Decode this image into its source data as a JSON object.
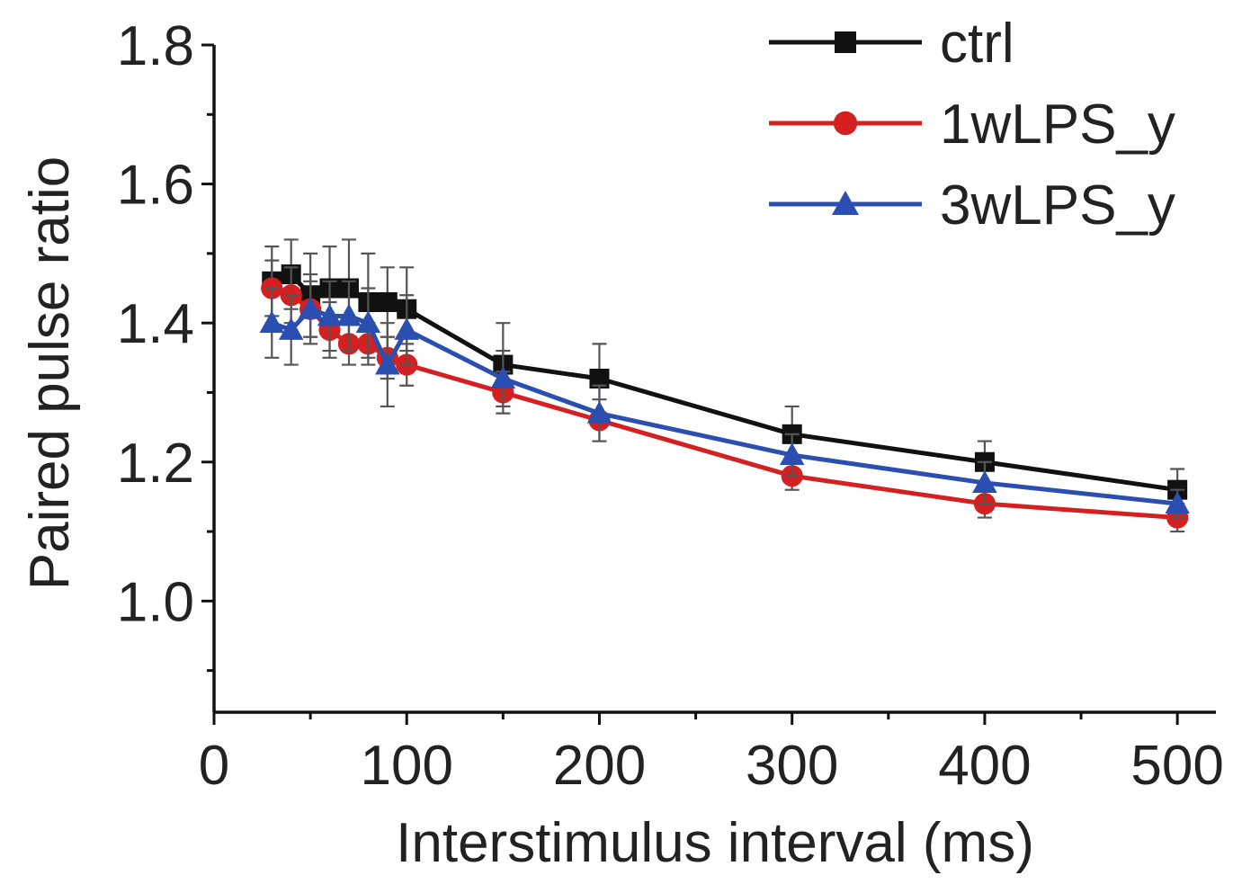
{
  "chart_data": {
    "type": "line",
    "title": "",
    "xlabel": "Interstimulus interval (ms)",
    "ylabel": "Paired pulse ratio",
    "xlim": [
      0,
      520
    ],
    "ylim": [
      0.84,
      1.8
    ],
    "xticks": [
      0,
      100,
      200,
      300,
      400,
      500
    ],
    "xtick_labels": [
      "0",
      "100",
      "200",
      "300",
      "400",
      "500"
    ],
    "yticks": [
      1.0,
      1.2,
      1.4,
      1.6,
      1.8
    ],
    "ytick_labels": [
      "1.0",
      "1.2",
      "1.4",
      "1.6",
      "1.8"
    ],
    "legend_position": "top-right",
    "x": [
      30,
      40,
      50,
      60,
      70,
      80,
      90,
      100,
      150,
      200,
      300,
      400,
      500
    ],
    "series": [
      {
        "name": "ctrl",
        "color": "#111111",
        "marker": "square",
        "values": [
          1.46,
          1.47,
          1.44,
          1.45,
          1.45,
          1.43,
          1.43,
          1.42,
          1.34,
          1.32,
          1.24,
          1.2,
          1.16
        ],
        "errors": [
          0.05,
          0.05,
          0.06,
          0.06,
          0.07,
          0.07,
          0.05,
          0.06,
          0.06,
          0.05,
          0.04,
          0.03,
          0.03
        ]
      },
      {
        "name": "1wLPS_y",
        "color": "#d42020",
        "marker": "circle",
        "values": [
          1.45,
          1.44,
          1.42,
          1.39,
          1.37,
          1.37,
          1.35,
          1.34,
          1.3,
          1.26,
          1.18,
          1.14,
          1.12
        ],
        "errors": [
          0.04,
          0.04,
          0.04,
          0.04,
          0.03,
          0.03,
          0.03,
          0.03,
          0.03,
          0.03,
          0.02,
          0.02,
          0.02
        ]
      },
      {
        "name": "3wLPS_y",
        "color": "#2a4fb0",
        "marker": "triangle",
        "values": [
          1.4,
          1.39,
          1.42,
          1.41,
          1.41,
          1.4,
          1.34,
          1.39,
          1.32,
          1.27,
          1.21,
          1.17,
          1.14
        ],
        "errors": [
          0.05,
          0.05,
          0.05,
          0.05,
          0.05,
          0.05,
          0.06,
          0.05,
          0.04,
          0.04,
          0.03,
          0.03,
          0.02
        ]
      }
    ]
  }
}
